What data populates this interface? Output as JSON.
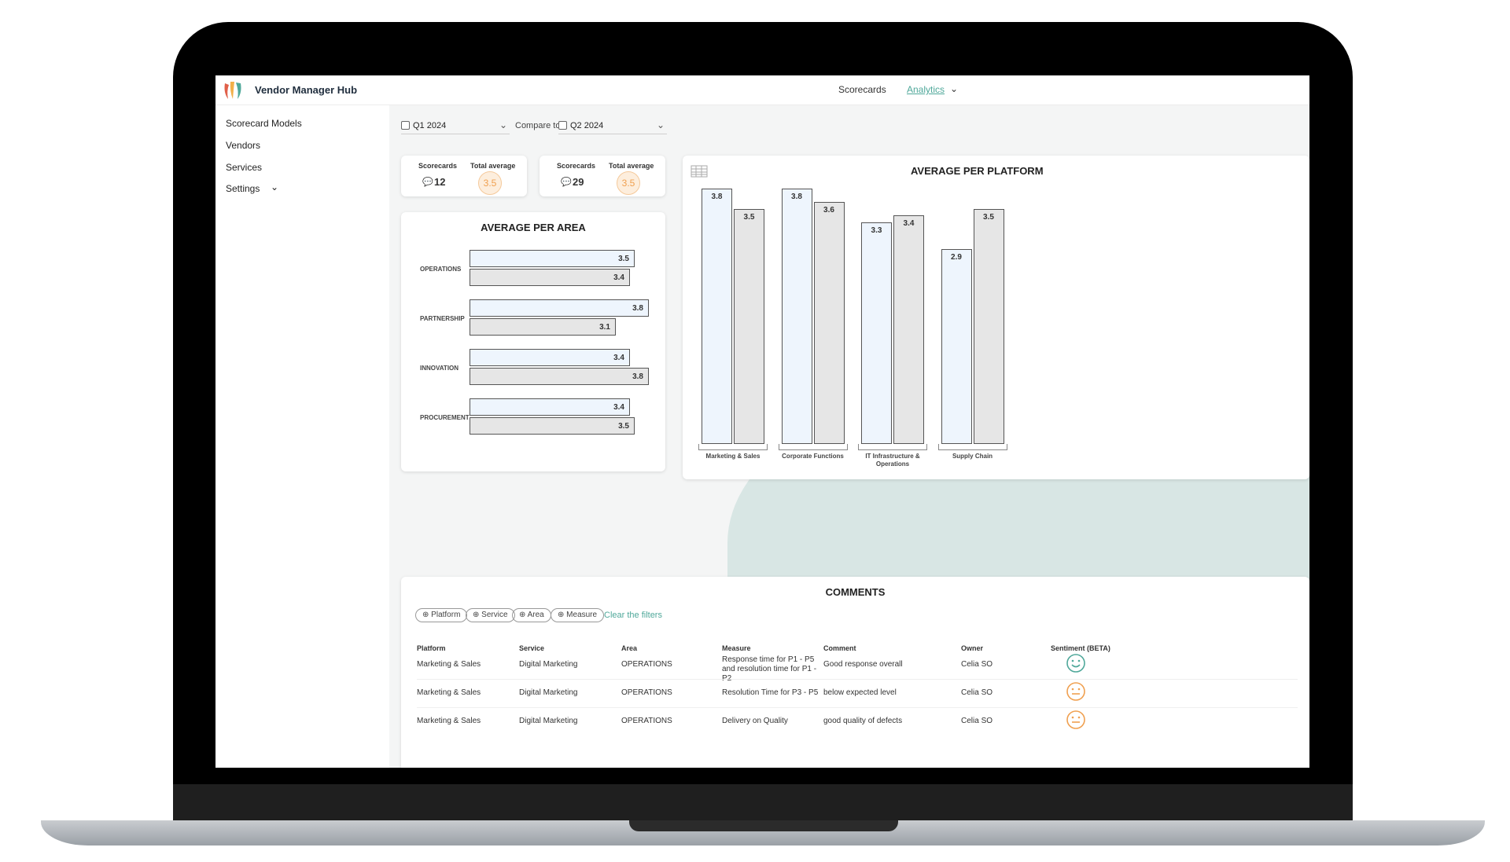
{
  "app": {
    "title": "Vendor Manager Hub"
  },
  "nav": {
    "scorecards": "Scorecards",
    "analytics": "Analytics"
  },
  "sidebar": {
    "items": [
      {
        "label": "Scorecard Models"
      },
      {
        "label": "Vendors"
      },
      {
        "label": "Services"
      },
      {
        "label": "Settings"
      }
    ]
  },
  "filters": {
    "period1": "Q1 2024",
    "compare_label": "Compare to",
    "period2": "Q2 2024"
  },
  "kpis": [
    {
      "scorecards_label": "Scorecards",
      "total_label": "Total average",
      "scorecards": "12",
      "total": "3.5"
    },
    {
      "scorecards_label": "Scorecards",
      "total_label": "Total average",
      "scorecards": "29",
      "total": "3.5"
    }
  ],
  "colors": {
    "accent": "#4fa89a",
    "q1_bar": "#eef5fd",
    "q2_bar": "#e6e6e6",
    "badge": "#f0a050"
  },
  "chart_data": [
    {
      "type": "bar",
      "orientation": "horizontal",
      "title": "AVERAGE PER AREA",
      "categories": [
        "OPERATIONS",
        "PARTNERSHIP",
        "INNOVATION",
        "PROCUREMENT"
      ],
      "series": [
        {
          "values": [
            3.5,
            3.8,
            3.4,
            3.4
          ]
        },
        {
          "values": [
            3.4,
            3.1,
            3.8,
            3.5
          ]
        }
      ],
      "xlim": [
        0,
        5
      ]
    },
    {
      "type": "bar",
      "title": "AVERAGE PER PLATFORM",
      "categories": [
        "Marketing & Sales",
        "Corporate Functions",
        "IT Infrastructure & Operations",
        "Supply Chain"
      ],
      "series": [
        {
          "values": [
            3.8,
            3.8,
            3.3,
            2.9
          ]
        },
        {
          "values": [
            3.5,
            3.6,
            3.4,
            3.5
          ]
        }
      ],
      "ylim": [
        0,
        4
      ]
    }
  ],
  "comments": {
    "title": "COMMENTS",
    "chips": [
      "Platform",
      "Service",
      "Area",
      "Measure"
    ],
    "clear_label": "Clear the filters",
    "headers": [
      "Platform",
      "Service",
      "Area",
      "Measure",
      "Comment",
      "Owner",
      "Sentiment (BETA)"
    ],
    "rows": [
      {
        "platform": "Marketing & Sales",
        "service": "Digital Marketing",
        "area": "OPERATIONS",
        "measure": "Response time for P1 - P5 and resolution time for P1 - P2",
        "comment": "Good response overall",
        "owner": "Celia SO",
        "sentiment": "happy-face-icon"
      },
      {
        "platform": "Marketing & Sales",
        "service": "Digital Marketing",
        "area": "OPERATIONS",
        "measure": "Resolution Time for P3 - P5",
        "comment": "below expected level",
        "owner": "Celia SO",
        "sentiment": "neutral-face-icon"
      },
      {
        "platform": "Marketing & Sales",
        "service": "Digital Marketing",
        "area": "OPERATIONS",
        "measure": "Delivery on Quality",
        "comment": "good quality of defects",
        "owner": "Celia SO",
        "sentiment": "neutral-face-icon"
      }
    ]
  }
}
